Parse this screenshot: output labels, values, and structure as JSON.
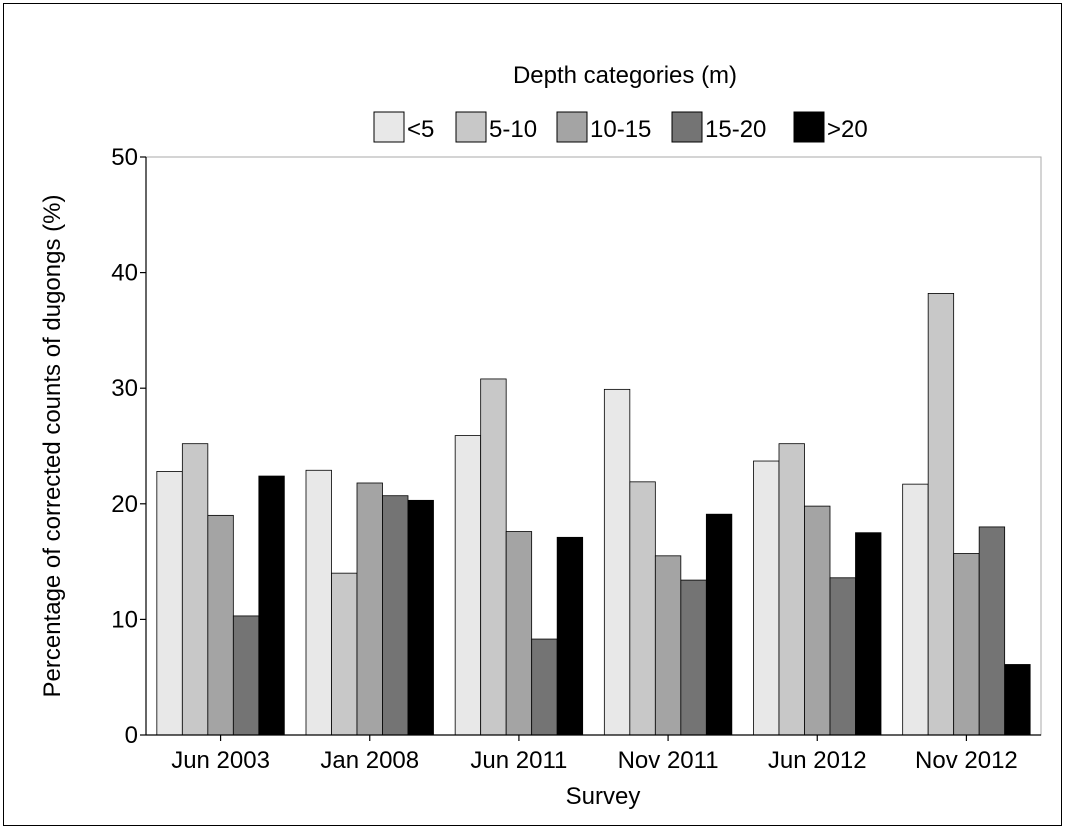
{
  "chart_data": {
    "type": "bar",
    "title": "",
    "xlabel": "Survey",
    "ylabel": "Percentage of corrected counts of dugongs (%)",
    "ylim": [
      0,
      50
    ],
    "yticks": [
      "0",
      "10",
      "20",
      "30",
      "40",
      "50"
    ],
    "grid": false,
    "legend": {
      "title": "Depth categories (m)",
      "placement": "top"
    },
    "categories": [
      "Jun 2003",
      "Jan 2008",
      "Jun 2011",
      "Nov 2011",
      "Jun 2012",
      "Nov 2012"
    ],
    "series": [
      {
        "name": "<5",
        "color": "#e8e8e8",
        "values": [
          22.8,
          22.9,
          25.9,
          29.9,
          23.7,
          21.7
        ]
      },
      {
        "name": "5-10",
        "color": "#c8c8c8",
        "values": [
          25.2,
          14.0,
          30.8,
          21.9,
          25.2,
          38.2
        ]
      },
      {
        "name": "10-15",
        "color": "#a4a4a4",
        "values": [
          19.0,
          21.8,
          17.6,
          15.5,
          19.8,
          15.7
        ]
      },
      {
        "name": "15-20",
        "color": "#747474",
        "values": [
          10.3,
          20.7,
          8.3,
          13.4,
          13.6,
          18.0
        ]
      },
      {
        "name": ">20",
        "color": "#000000",
        "values": [
          22.4,
          20.3,
          17.1,
          19.1,
          17.5,
          6.1
        ]
      }
    ]
  }
}
